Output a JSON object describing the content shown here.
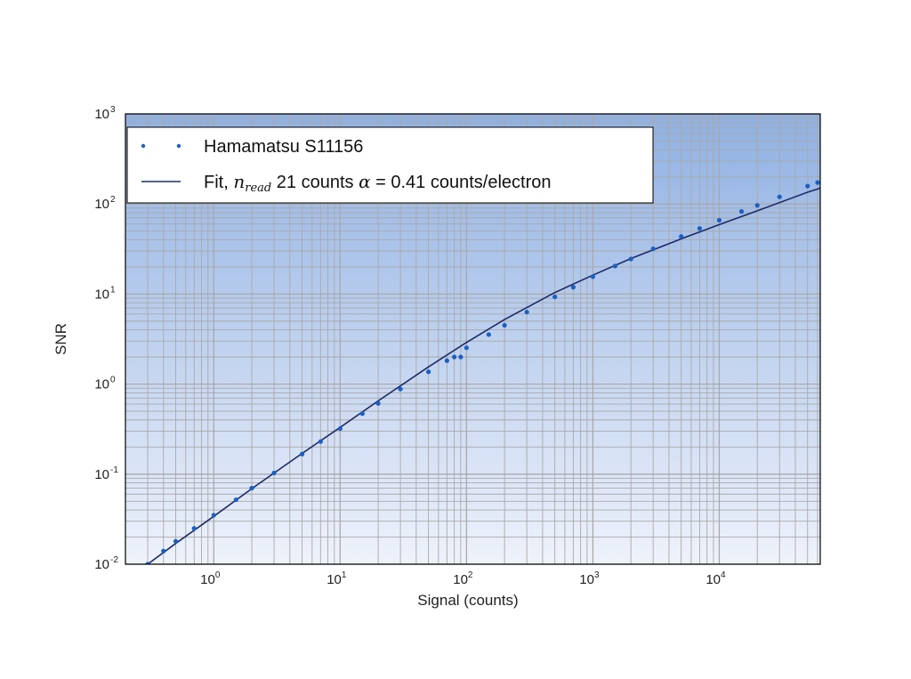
{
  "chart_data": {
    "type": "scatter",
    "title": "",
    "xlabel": "Signal (counts)",
    "ylabel": "SNR",
    "xscale": "log",
    "yscale": "log",
    "xlim": [
      0.2,
      63000
    ],
    "ylim": [
      0.01,
      1000
    ],
    "grid": true,
    "legend_position": "top-left",
    "x_ticks": [
      {
        "base": "10",
        "exp": "0",
        "value": 1
      },
      {
        "base": "10",
        "exp": "1",
        "value": 10
      },
      {
        "base": "10",
        "exp": "2",
        "value": 100
      },
      {
        "base": "10",
        "exp": "3",
        "value": 1000
      },
      {
        "base": "10",
        "exp": "4",
        "value": 10000
      }
    ],
    "y_ticks": [
      {
        "base": "10",
        "exp": "-2",
        "value": 0.01
      },
      {
        "base": "10",
        "exp": "-1",
        "value": 0.1
      },
      {
        "base": "10",
        "exp": "0",
        "value": 1
      },
      {
        "base": "10",
        "exp": "1",
        "value": 10
      },
      {
        "base": "10",
        "exp": "2",
        "value": 100
      },
      {
        "base": "10",
        "exp": "3",
        "value": 1000
      }
    ],
    "series": [
      {
        "name": "Hamamatsu S11156",
        "kind": "points",
        "color": "#1a5fc4",
        "x": [
          0.3,
          0.4,
          0.5,
          0.7,
          1.0,
          1.5,
          2.0,
          3.0,
          5.0,
          7.0,
          10,
          15,
          20,
          30,
          50,
          70,
          80,
          90,
          100,
          150,
          200,
          300,
          500,
          700,
          1000,
          1500,
          2000,
          3000,
          5000,
          7000,
          10000,
          15000,
          20000,
          30000,
          50000,
          60000
        ],
        "y": [
          0.01,
          0.014,
          0.018,
          0.025,
          0.035,
          0.052,
          0.07,
          0.103,
          0.167,
          0.23,
          0.32,
          0.47,
          0.61,
          0.88,
          1.37,
          1.82,
          2.0,
          2.0,
          2.53,
          3.55,
          4.5,
          6.3,
          9.3,
          11.9,
          15.6,
          20.5,
          24.5,
          31.8,
          43.5,
          53.5,
          66.0,
          82.5,
          96.5,
          120.0,
          158.0,
          173.0
        ]
      },
      {
        "name": "Fit, n_read 21 counts α = 0.41 counts/electron",
        "legend_prefix": "Fit, ",
        "legend_symbol_1": "n",
        "legend_sub": "read",
        "legend_middle": " 21 counts ",
        "legend_symbol_2": "α",
        "legend_suffix": " = 0.41 counts/electron",
        "kind": "line",
        "color": "#1c2a66",
        "x": [
          0.3,
          0.5,
          1.0,
          2.0,
          5.0,
          10,
          20,
          50,
          100,
          200,
          500,
          1000,
          2000,
          5000,
          10000,
          20000,
          50000,
          63000
        ],
        "y": [
          0.01,
          0.017,
          0.034,
          0.069,
          0.17,
          0.33,
          0.65,
          1.55,
          2.9,
          5.2,
          10.4,
          16.2,
          24.8,
          41.0,
          59.0,
          84.0,
          135.0,
          150.0
        ]
      }
    ]
  }
}
